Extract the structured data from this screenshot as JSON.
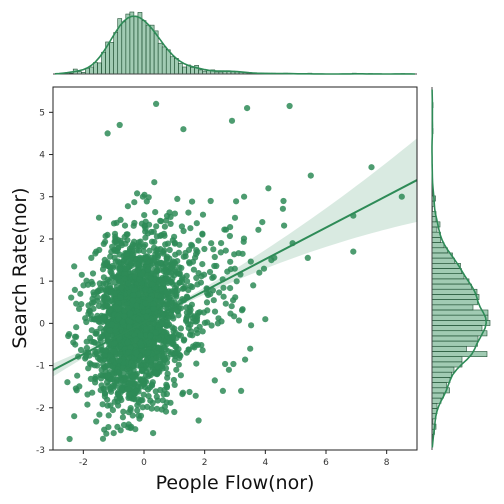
{
  "chart_data": {
    "type": "scatter",
    "title": "",
    "xlabel": "People Flow(nor)",
    "ylabel": "Search Rate(nor)",
    "xlim": [
      -3,
      9
    ],
    "ylim": [
      -3,
      5.6
    ],
    "x_ticks": [
      "-2",
      "0",
      "2",
      "4",
      "6",
      "8"
    ],
    "y_ticks": [
      "-3",
      "-2",
      "-1",
      "0",
      "1",
      "2",
      "3",
      "4",
      "5"
    ],
    "grid": false,
    "legend": "none",
    "color": "#2e8b57",
    "marginals": {
      "top": "histogram-with-kde",
      "right": "histogram-with-kde"
    },
    "regression": {
      "slope": 0.375,
      "intercept": 0.02,
      "ci_band": true
    },
    "n_points_approx": 2200,
    "outlier_points": [
      {
        "x": 0.4,
        "y": 5.2
      },
      {
        "x": 4.8,
        "y": 5.15
      },
      {
        "x": 3.4,
        "y": 5.1
      },
      {
        "x": -0.8,
        "y": 4.7
      },
      {
        "x": -1.2,
        "y": 4.5
      },
      {
        "x": 1.3,
        "y": 4.6
      },
      {
        "x": 2.9,
        "y": 4.8
      },
      {
        "x": 7.5,
        "y": 3.7
      },
      {
        "x": 5.5,
        "y": 3.5
      },
      {
        "x": 8.5,
        "y": 3.0
      },
      {
        "x": 6.9,
        "y": 2.55
      },
      {
        "x": 6.9,
        "y": 1.7
      },
      {
        "x": 5.4,
        "y": 1.55
      },
      {
        "x": 4.1,
        "y": 3.2
      },
      {
        "x": 3.3,
        "y": 3.0
      },
      {
        "x": 4.6,
        "y": 2.9
      },
      {
        "x": 3.9,
        "y": 2.4
      },
      {
        "x": 4.9,
        "y": 1.9
      },
      {
        "x": 3.6,
        "y": 0.9
      },
      {
        "x": 3.8,
        "y": 1.2
      },
      {
        "x": 3.2,
        "y": -1.6
      },
      {
        "x": 2.6,
        "y": -1.6
      },
      {
        "x": 1.8,
        "y": -2.3
      },
      {
        "x": 0.3,
        "y": -2.6
      },
      {
        "x": -1.0,
        "y": -2.6
      },
      {
        "x": -2.3,
        "y": -2.2
      },
      {
        "x": -2.1,
        "y": 0.7
      },
      {
        "x": -2.3,
        "y": 1.35
      },
      {
        "x": -2.5,
        "y": -0.3
      },
      {
        "x": 1.0,
        "y": -2.1
      },
      {
        "x": 2.2,
        "y": 2.9
      },
      {
        "x": 3.0,
        "y": 2.5
      },
      {
        "x": 4.2,
        "y": 1.5
      },
      {
        "x": 2.8,
        "y": -1.1
      },
      {
        "x": 3.5,
        "y": -0.6
      },
      {
        "x": 4.0,
        "y": 0.1
      }
    ]
  }
}
